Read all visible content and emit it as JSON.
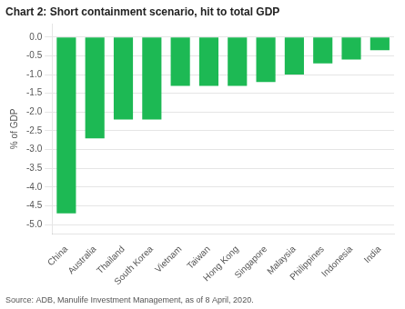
{
  "chart_data": {
    "type": "bar",
    "title": "Chart 2: Short containment scenario, hit to total GDP",
    "ylabel": "% of GDP",
    "source": "Source: ADB, Manulife Investment Management, as of 8 April, 2020.",
    "categories": [
      "China",
      "Australia",
      "Thailand",
      "South Korea",
      "Vietnam",
      "Taiwan",
      "Hong Kong",
      "Singapore",
      "Malaysia",
      "Philippines",
      "Indonesia",
      "India"
    ],
    "values": [
      -4.7,
      -2.7,
      -2.2,
      -2.2,
      -1.3,
      -1.3,
      -1.3,
      -1.2,
      -1.0,
      -0.7,
      -0.6,
      -0.35
    ],
    "color": "#1db954",
    "ylim": [
      -5.25,
      0.35
    ],
    "yticks": [
      {
        "value": 0.0,
        "label": "0.0"
      },
      -0.5,
      {
        "value": -1.0,
        "label": "-1.0"
      },
      -1.5,
      {
        "value": -2.0,
        "label": "-2.0"
      },
      -2.5,
      {
        "value": -3.0,
        "label": "-3.0"
      },
      -3.5,
      {
        "value": -4.0,
        "label": "-4.0"
      },
      -4.5,
      {
        "value": -5.0,
        "label": "-5.0"
      }
    ],
    "grid": true
  }
}
